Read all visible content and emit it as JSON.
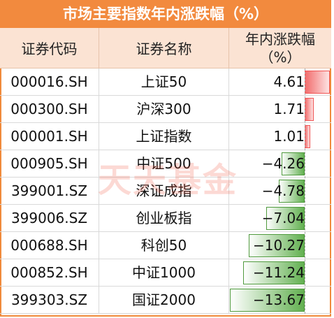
{
  "title": "市场主要指数年内涨跌幅（%）",
  "headers": {
    "code": "证券代码",
    "name": "证券名称",
    "value_line1": "年内涨跌幅",
    "value_line2": "（%）"
  },
  "watermark": "天天基金",
  "colors": {
    "title_bg": "#f28a3e",
    "header_bg": "#fbe3d3",
    "positive": "#f26d6d",
    "negative": "#62b050"
  },
  "chart_data": {
    "type": "table",
    "columns": [
      "证券代码",
      "证券名称",
      "年内涨跌幅（%）"
    ],
    "rows": [
      {
        "code": "000016.SH",
        "name": "上证50",
        "value": 4.61,
        "value_text": "4.61"
      },
      {
        "code": "000300.SH",
        "name": "沪深300",
        "value": 1.71,
        "value_text": "1.71"
      },
      {
        "code": "000001.SH",
        "name": "上证指数",
        "value": 1.01,
        "value_text": "1.01"
      },
      {
        "code": "000905.SH",
        "name": "中证500",
        "value": -4.26,
        "value_text": "−4.26"
      },
      {
        "code": "399001.SZ",
        "name": "深证成指",
        "value": -4.78,
        "value_text": "−4.78"
      },
      {
        "code": "399006.SZ",
        "name": "创业板指",
        "value": -7.04,
        "value_text": "−7.04"
      },
      {
        "code": "000688.SH",
        "name": "科创50",
        "value": -10.27,
        "value_text": "−10.27"
      },
      {
        "code": "000852.SH",
        "name": "中证1000",
        "value": -11.24,
        "value_text": "−11.24"
      },
      {
        "code": "399303.SZ",
        "name": "国证2000",
        "value": -13.67,
        "value_text": "−13.67"
      }
    ]
  }
}
